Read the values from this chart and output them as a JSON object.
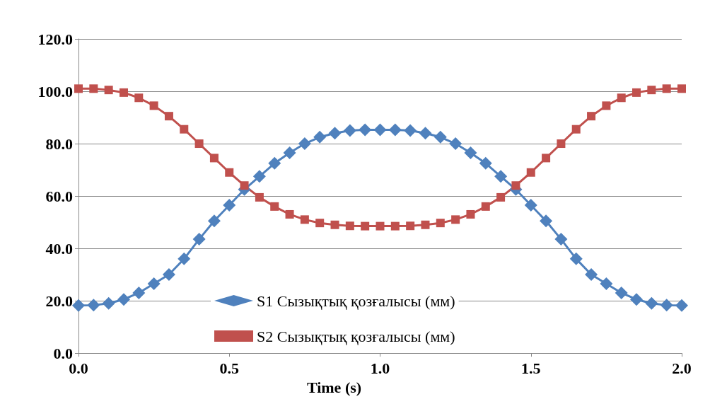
{
  "chart_data": {
    "type": "line",
    "xlabel": "Time (s)",
    "x": [
      0,
      0.05,
      0.1,
      0.15,
      0.2,
      0.25,
      0.3,
      0.35,
      0.4,
      0.45,
      0.5,
      0.55,
      0.6,
      0.65,
      0.7,
      0.75,
      0.8,
      0.85,
      0.9,
      0.95,
      1.0,
      1.05,
      1.1,
      1.15,
      1.2,
      1.25,
      1.3,
      1.35,
      1.4,
      1.45,
      1.5,
      1.55,
      1.6,
      1.65,
      1.7,
      1.75,
      1.8,
      1.85,
      1.9,
      1.95,
      2.0
    ],
    "series": [
      {
        "name": "S1 Сызықтық қозғалысы (мм)",
        "color": "#4f81bd",
        "marker": "diamond",
        "values": [
          18.2,
          18.3,
          19,
          20.5,
          23,
          26.5,
          30,
          36,
          43.5,
          50.5,
          56.5,
          62.5,
          67.5,
          72.5,
          76.5,
          80,
          82.5,
          84,
          85,
          85.3,
          85.3,
          85.3,
          85,
          84,
          82.5,
          80,
          76.5,
          72.5,
          67.5,
          62.5,
          56.5,
          50.5,
          43.5,
          36,
          30,
          26.5,
          23,
          20.5,
          19,
          18.3,
          18.2
        ]
      },
      {
        "name": "S2 Сызықтық қозғалысы (мм)",
        "color": "#c0504d",
        "marker": "square",
        "values": [
          101,
          101,
          100.5,
          99.5,
          97.5,
          94.5,
          90.5,
          85.5,
          80,
          74.5,
          69,
          64,
          59.5,
          56,
          53,
          51,
          49.7,
          49,
          48.6,
          48.5,
          48.5,
          48.5,
          48.6,
          49,
          49.7,
          51,
          53,
          56,
          59.5,
          64,
          69,
          74.5,
          80,
          85.5,
          90.5,
          94.5,
          97.5,
          99.5,
          100.5,
          101,
          101
        ]
      }
    ],
    "xlim": [
      0,
      2
    ],
    "xticks": [
      {
        "value": 0,
        "label": "0.0"
      },
      {
        "value": 0.5,
        "label": "0.5"
      },
      {
        "value": 1,
        "label": "1.0"
      },
      {
        "value": 1.5,
        "label": "1.5"
      },
      {
        "value": 2,
        "label": "2.0"
      }
    ],
    "ylim": [
      0,
      120
    ],
    "yticks": [
      {
        "value": 0,
        "label": "0.0"
      },
      {
        "value": 20,
        "label": "20.0"
      },
      {
        "value": 40,
        "label": "40.0"
      },
      {
        "value": 60,
        "label": "60.0"
      },
      {
        "value": 80,
        "label": "80.0"
      },
      {
        "value": 100,
        "label": "100.0"
      },
      {
        "value": 120,
        "label": "120.0"
      }
    ],
    "grid": "y",
    "legend": "bottom",
    "line_style": "solid"
  }
}
